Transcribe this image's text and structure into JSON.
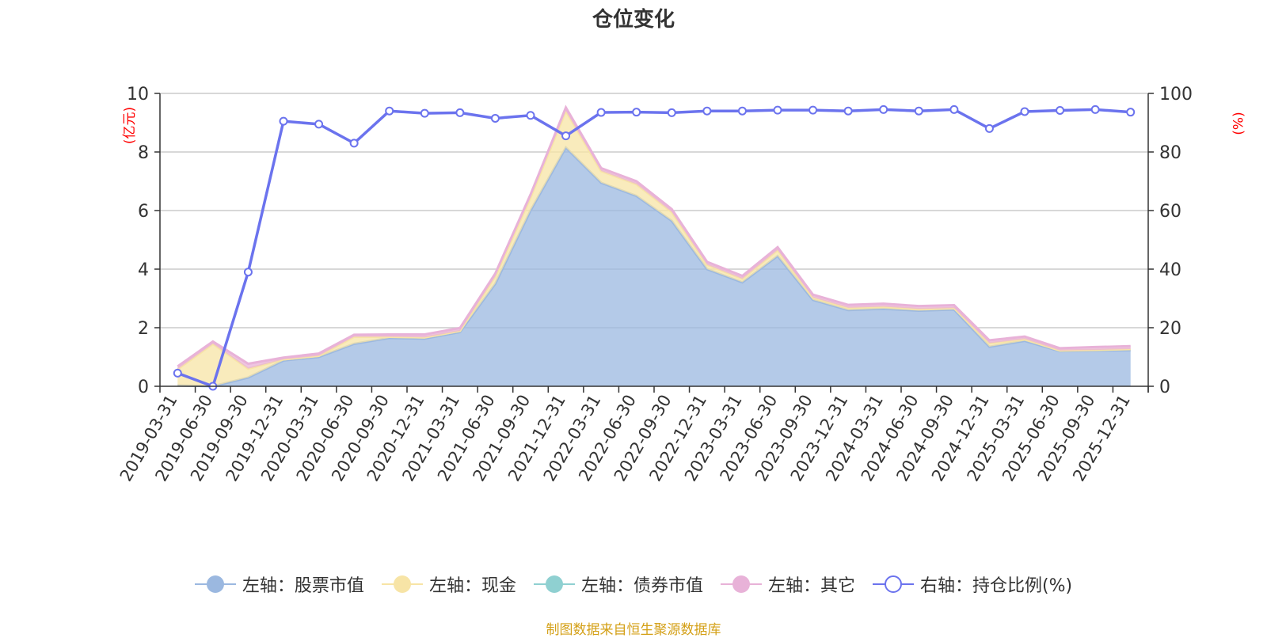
{
  "chart_data": {
    "type": "area",
    "title": "仓位变化",
    "categories": [
      "2019-03-31",
      "2019-06-30",
      "2019-09-30",
      "2019-12-31",
      "2020-03-31",
      "2020-06-30",
      "2020-09-30",
      "2020-12-31",
      "2021-03-31",
      "2021-06-30",
      "2021-09-30",
      "2021-12-31",
      "2022-03-31",
      "2022-06-30",
      "2022-09-30",
      "2022-12-31",
      "2023-03-31",
      "2023-06-30",
      "2023-09-30",
      "2023-12-31",
      "2024-03-31",
      "2024-06-30",
      "2024-09-30",
      "2024-12-31",
      "2025-03-31",
      "2025-06-30",
      "2025-09-30",
      "2025-12-31"
    ],
    "left_axis": {
      "unit": "(亿元)",
      "ylim": [
        0,
        10
      ],
      "ticks": [
        0,
        2,
        4,
        6,
        8,
        10
      ]
    },
    "right_axis": {
      "unit": "(%)",
      "ylim": [
        0,
        100
      ],
      "ticks": [
        0,
        20,
        40,
        60,
        80,
        100
      ]
    },
    "series": [
      {
        "name": "左轴：股票市值",
        "axis": "left",
        "kind": "area",
        "color": "#9bb8e0",
        "values": [
          0.03,
          0.0,
          0.3,
          0.88,
          1.0,
          1.45,
          1.65,
          1.63,
          1.85,
          3.5,
          6.0,
          8.15,
          6.95,
          6.5,
          5.65,
          4.0,
          3.55,
          4.45,
          2.95,
          2.6,
          2.65,
          2.58,
          2.62,
          1.35,
          1.55,
          1.2,
          1.22,
          1.23
        ]
      },
      {
        "name": "左轴：现金",
        "axis": "left",
        "kind": "area",
        "color": "#f7e4a6",
        "values": [
          0.55,
          1.45,
          0.3,
          0.04,
          0.04,
          0.24,
          0.04,
          0.04,
          0.04,
          0.25,
          0.45,
          1.25,
          0.4,
          0.4,
          0.3,
          0.15,
          0.12,
          0.2,
          0.08,
          0.08,
          0.07,
          0.06,
          0.05,
          0.12,
          0.06,
          0.02,
          0.02,
          0.04
        ]
      },
      {
        "name": "左轴：债券市值",
        "axis": "left",
        "kind": "area",
        "color": "#8fd0d1",
        "values": [
          0,
          0,
          0,
          0,
          0,
          0,
          0,
          0,
          0,
          0,
          0,
          0,
          0,
          0,
          0,
          0,
          0,
          0,
          0,
          0,
          0,
          0,
          0,
          0,
          0,
          0,
          0,
          0
        ]
      },
      {
        "name": "左轴：其它",
        "axis": "left",
        "kind": "area",
        "color": "#e8b2d8",
        "values": [
          0.1,
          0.08,
          0.17,
          0.06,
          0.08,
          0.07,
          0.08,
          0.1,
          0.1,
          0.1,
          0.1,
          0.12,
          0.1,
          0.1,
          0.1,
          0.1,
          0.1,
          0.1,
          0.1,
          0.1,
          0.1,
          0.1,
          0.1,
          0.1,
          0.09,
          0.08,
          0.1,
          0.1
        ]
      },
      {
        "name": "右轴：持仓比例(%)",
        "axis": "right",
        "kind": "line",
        "color": "#6b73ee",
        "values": [
          4.5,
          0.0,
          39.0,
          90.5,
          89.5,
          83.0,
          94.0,
          93.2,
          93.4,
          91.5,
          92.5,
          85.5,
          93.5,
          93.6,
          93.4,
          94.0,
          94.0,
          94.3,
          94.3,
          94.0,
          94.5,
          94.0,
          94.5,
          88.0,
          93.8,
          94.2,
          94.5,
          93.6
        ]
      }
    ],
    "grid": true,
    "legend_position": "bottom"
  },
  "source_note": "制图数据来自恒生聚源数据库"
}
